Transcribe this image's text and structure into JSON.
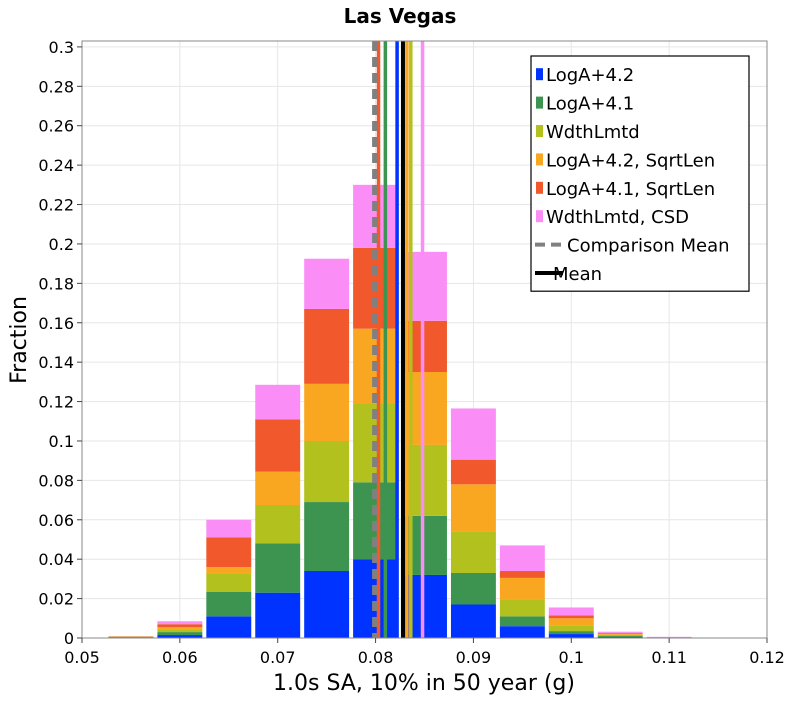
{
  "chart_data": {
    "type": "bar",
    "stacked": true,
    "title": "Las Vegas",
    "xlabel": "1.0s SA, 10% in 50 year (g)",
    "ylabel": "Fraction",
    "xlim": [
      0.05,
      0.12
    ],
    "ylim": [
      0,
      0.303
    ],
    "grid": true,
    "legend_position": "top-right",
    "x_ticks": [
      "0.05",
      "0.06",
      "0.07",
      "0.08",
      "0.09",
      "0.1",
      "0.11",
      "0.12"
    ],
    "x_tick_values": [
      0.05,
      0.06,
      0.07,
      0.08,
      0.09,
      0.1,
      0.11,
      0.12
    ],
    "y_ticks": [
      "0",
      "0.02",
      "0.04",
      "0.06",
      "0.08",
      "0.1",
      "0.12",
      "0.14",
      "0.16",
      "0.18",
      "0.2",
      "0.22",
      "0.24",
      "0.26",
      "0.28",
      "0.3"
    ],
    "y_tick_values": [
      0,
      0.02,
      0.04,
      0.06,
      0.08,
      0.1,
      0.12,
      0.14,
      0.16,
      0.18,
      0.2,
      0.22,
      0.24,
      0.26,
      0.28,
      0.3
    ],
    "bin_width": 0.005,
    "bin_centers": [
      0.055,
      0.06,
      0.065,
      0.07,
      0.075,
      0.08,
      0.085,
      0.09,
      0.095,
      0.1,
      0.105,
      0.11,
      0.115,
      0.12
    ],
    "series": [
      {
        "name": "LogA+4.2",
        "color": "#0033ff",
        "values": [
          0.0003,
          0.0015,
          0.011,
          0.023,
          0.034,
          0.04,
          0.032,
          0.017,
          0.006,
          0.002,
          0.0005,
          0.0001,
          0,
          0
        ]
      },
      {
        "name": "LogA+4.1",
        "color": "#3d9450",
        "values": [
          0.0002,
          0.0015,
          0.0125,
          0.025,
          0.035,
          0.039,
          0.03,
          0.016,
          0.005,
          0.0015,
          0.0005,
          0.0001,
          0,
          0
        ]
      },
      {
        "name": "WdthLmtd",
        "color": "#b2c11e",
        "values": [
          0.0002,
          0.0015,
          0.009,
          0.0195,
          0.031,
          0.04,
          0.036,
          0.021,
          0.0085,
          0.003,
          0.0006,
          0.0001,
          0,
          0
        ]
      },
      {
        "name": "LogA+4.2, SqrtLen",
        "color": "#f9a621",
        "values": [
          0.0001,
          0.001,
          0.0035,
          0.017,
          0.029,
          0.038,
          0.037,
          0.024,
          0.011,
          0.0035,
          0.0006,
          0.0001,
          0,
          0
        ]
      },
      {
        "name": "LogA+4.1, SqrtLen",
        "color": "#f1582b",
        "values": [
          0.0001,
          0.0015,
          0.015,
          0.0265,
          0.038,
          0.041,
          0.026,
          0.0125,
          0.0035,
          0.0015,
          0.0004,
          0.0001,
          0,
          0
        ]
      },
      {
        "name": "WdthLmtd, CSD",
        "color": "#fb8ef6",
        "values": [
          0.0001,
          0.0015,
          0.009,
          0.0175,
          0.0255,
          0.032,
          0.035,
          0.026,
          0.013,
          0.004,
          0.0006,
          0.0001,
          0,
          0
        ]
      }
    ],
    "vertical_lines": [
      {
        "name": "LogA+4.2",
        "color": "#0033ff",
        "x": 0.0822,
        "style": "solid"
      },
      {
        "name": "LogA+4.1",
        "color": "#3d9450",
        "x": 0.081,
        "style": "solid"
      },
      {
        "name": "WdthLmtd",
        "color": "#b2c11e",
        "x": 0.0836,
        "style": "solid"
      },
      {
        "name": "LogA+4.2, SqrtLen",
        "color": "#f9a621",
        "x": 0.0832,
        "style": "solid"
      },
      {
        "name": "LogA+4.1, SqrtLen",
        "color": "#f1582b",
        "x": 0.0803,
        "style": "solid"
      },
      {
        "name": "WdthLmtd, CSD",
        "color": "#fb8ef6",
        "x": 0.0848,
        "style": "solid"
      },
      {
        "name": "Comparison Mean",
        "color": "#808080",
        "x": 0.0799,
        "style": "dashed"
      },
      {
        "name": "Mean",
        "color": "#000000",
        "x": 0.0828,
        "style": "solid"
      }
    ],
    "legend": [
      {
        "label": "LogA+4.2",
        "color": "#0033ff",
        "marker": "box"
      },
      {
        "label": "LogA+4.1",
        "color": "#3d9450",
        "marker": "box"
      },
      {
        "label": "WdthLmtd",
        "color": "#b2c11e",
        "marker": "box"
      },
      {
        "label": "LogA+4.2, SqrtLen",
        "color": "#f9a621",
        "marker": "box"
      },
      {
        "label": "LogA+4.1, SqrtLen",
        "color": "#f1582b",
        "marker": "box"
      },
      {
        "label": "WdthLmtd, CSD",
        "color": "#fb8ef6",
        "marker": "box"
      },
      {
        "label": "Comparison Mean",
        "color": "#808080",
        "marker": "dashed-line"
      },
      {
        "label": "Mean",
        "color": "#000000",
        "marker": "line"
      }
    ]
  }
}
